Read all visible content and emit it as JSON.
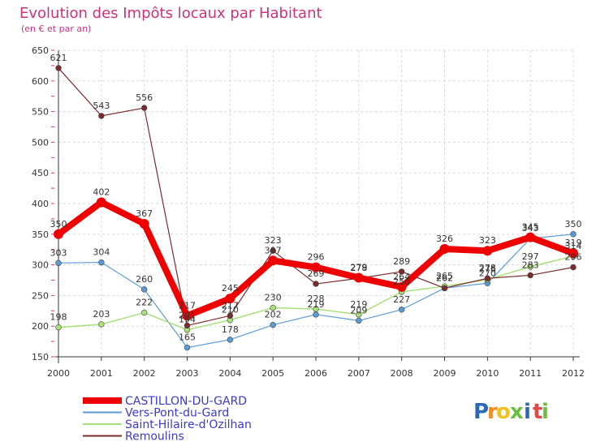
{
  "chart_data": {
    "type": "line",
    "title": "Evolution des Impôts locaux par Habitant",
    "subtitle": "(en € et par an)",
    "xlabel": "",
    "ylabel": "",
    "ylim": [
      150,
      650
    ],
    "yticks": [
      150,
      200,
      250,
      300,
      350,
      400,
      450,
      500,
      550,
      600,
      650
    ],
    "x": [
      "2000",
      "2001",
      "2002",
      "2003",
      "2004",
      "2005",
      "2006",
      "2007",
      "2008",
      "2009",
      "2010",
      "2011",
      "2012"
    ],
    "legend_position": "bottom-left",
    "series": [
      {
        "name": "CASTILLON-DU-GARD",
        "color": "#ee0000",
        "width": 8,
        "values": [
          350,
          402,
          367,
          217,
          245,
          307,
          296,
          279,
          264,
          326,
          323,
          345,
          319
        ]
      },
      {
        "name": "Vers-Pont-du-Gard",
        "color": "#5b9bd5",
        "width": 1.2,
        "values": [
          303,
          304,
          260,
          165,
          178,
          202,
          219,
          209,
          227,
          262,
          270,
          343,
          350
        ]
      },
      {
        "name": "Saint-Hilaire-d'Ozilhan",
        "color": "#a8e07a",
        "width": 1.5,
        "values": [
          198,
          203,
          222,
          194,
          210,
          230,
          228,
          219,
          256,
          265,
          276,
          297,
          314
        ]
      },
      {
        "name": "Remoulins",
        "color": "#7a2b2b",
        "width": 1.2,
        "values": [
          621,
          543,
          556,
          201,
          217,
          323,
          269,
          278,
          289,
          262,
          278,
          283,
          296
        ]
      }
    ]
  },
  "brand": {
    "letters": [
      "P",
      "r",
      "o",
      "x",
      "i",
      "t",
      "i"
    ],
    "colors": [
      "#2a6ab8",
      "#f28c1c",
      "#f2c21c",
      "#6bbf3a",
      "#2a6ab8",
      "#e0484a",
      "#6bbf3a"
    ]
  }
}
